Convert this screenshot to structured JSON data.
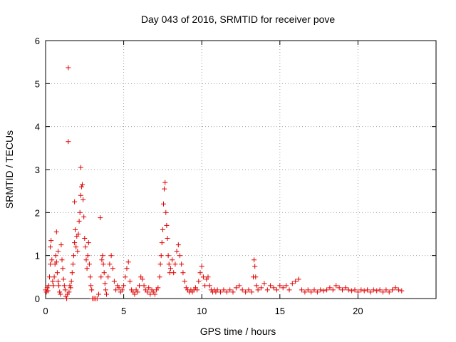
{
  "chart_data": {
    "type": "scatter",
    "title": "Day 043 of 2016, SRMTID for receiver pove",
    "xlabel": "GPS time / hours",
    "ylabel": "SRMTID / TECUs",
    "xlim": [
      0,
      25
    ],
    "ylim": [
      0,
      6
    ],
    "xticks": [
      0,
      5,
      10,
      15,
      20
    ],
    "yticks": [
      0,
      1,
      2,
      3,
      4,
      5,
      6
    ],
    "xtick_labels": [
      "0",
      "5",
      "10",
      "15",
      "20"
    ],
    "ytick_labels": [
      "0",
      "1",
      "2",
      "3",
      "4",
      "5",
      "6"
    ],
    "grid": true,
    "marker": "+",
    "color": "#e00000",
    "series": [
      {
        "name": "SRMTID",
        "points": [
          [
            0.0,
            0.2
          ],
          [
            0.05,
            0.15
          ],
          [
            0.1,
            0.25
          ],
          [
            0.15,
            0.18
          ],
          [
            0.2,
            0.3
          ],
          [
            0.25,
            0.5
          ],
          [
            0.3,
            0.8
          ],
          [
            0.3,
            1.2
          ],
          [
            0.35,
            1.35
          ],
          [
            0.4,
            0.9
          ],
          [
            0.45,
            0.4
          ],
          [
            0.5,
            0.3
          ],
          [
            0.55,
            0.5
          ],
          [
            0.6,
            0.8
          ],
          [
            0.65,
            1.0
          ],
          [
            0.7,
            0.85
          ],
          [
            0.75,
            0.6
          ],
          [
            0.8,
            0.4
          ],
          [
            0.85,
            0.3
          ],
          [
            0.9,
            0.15
          ],
          [
            0.95,
            0.1
          ],
          [
            0.7,
            1.55
          ],
          [
            0.8,
            1.1
          ],
          [
            1.0,
            1.25
          ],
          [
            1.05,
            0.9
          ],
          [
            1.1,
            0.7
          ],
          [
            1.15,
            0.45
          ],
          [
            1.2,
            0.3
          ],
          [
            1.25,
            0.2
          ],
          [
            1.3,
            0.05
          ],
          [
            1.35,
            0.0
          ],
          [
            1.4,
            0.1
          ],
          [
            1.45,
            5.37
          ],
          [
            1.45,
            3.65
          ],
          [
            1.5,
            0.15
          ],
          [
            1.55,
            0.3
          ],
          [
            1.6,
            0.25
          ],
          [
            1.65,
            0.4
          ],
          [
            1.7,
            0.6
          ],
          [
            1.75,
            0.8
          ],
          [
            1.8,
            1.0
          ],
          [
            1.85,
            1.3
          ],
          [
            1.9,
            1.6
          ],
          [
            1.85,
            2.25
          ],
          [
            1.95,
            1.2
          ],
          [
            2.0,
            1.45
          ],
          [
            2.05,
            1.1
          ],
          [
            2.1,
            1.5
          ],
          [
            2.15,
            1.8
          ],
          [
            2.2,
            2.0
          ],
          [
            2.25,
            2.4
          ],
          [
            2.25,
            3.05
          ],
          [
            2.3,
            2.6
          ],
          [
            2.35,
            2.65
          ],
          [
            2.4,
            2.3
          ],
          [
            2.45,
            1.9
          ],
          [
            2.5,
            1.4
          ],
          [
            2.55,
            1.2
          ],
          [
            2.6,
            0.9
          ],
          [
            2.65,
            0.7
          ],
          [
            2.7,
            1.0
          ],
          [
            2.75,
            1.3
          ],
          [
            2.8,
            0.8
          ],
          [
            2.85,
            0.5
          ],
          [
            2.9,
            0.3
          ],
          [
            2.95,
            0.2
          ],
          [
            3.0,
            0.0
          ],
          [
            3.1,
            0.0
          ],
          [
            3.2,
            0.0
          ],
          [
            3.3,
            0.0
          ],
          [
            3.4,
            0.1
          ],
          [
            3.5,
            1.88
          ],
          [
            3.55,
            0.5
          ],
          [
            3.6,
            0.9
          ],
          [
            3.65,
            1.0
          ],
          [
            3.7,
            0.8
          ],
          [
            3.75,
            0.6
          ],
          [
            3.8,
            0.35
          ],
          [
            3.85,
            0.2
          ],
          [
            3.9,
            0.1
          ],
          [
            4.0,
            0.5
          ],
          [
            4.1,
            0.8
          ],
          [
            4.2,
            1.0
          ],
          [
            4.3,
            0.7
          ],
          [
            4.4,
            0.4
          ],
          [
            4.5,
            0.2
          ],
          [
            4.6,
            0.3
          ],
          [
            4.7,
            0.25
          ],
          [
            4.8,
            0.15
          ],
          [
            4.9,
            0.2
          ],
          [
            5.0,
            0.3
          ],
          [
            5.1,
            0.5
          ],
          [
            5.2,
            0.7
          ],
          [
            5.3,
            0.85
          ],
          [
            5.4,
            0.4
          ],
          [
            5.5,
            0.2
          ],
          [
            5.6,
            0.15
          ],
          [
            5.7,
            0.1
          ],
          [
            5.8,
            0.2
          ],
          [
            5.9,
            0.15
          ],
          [
            6.0,
            0.3
          ],
          [
            6.1,
            0.5
          ],
          [
            6.2,
            0.45
          ],
          [
            6.3,
            0.3
          ],
          [
            6.4,
            0.2
          ],
          [
            6.5,
            0.15
          ],
          [
            6.6,
            0.25
          ],
          [
            6.7,
            0.1
          ],
          [
            6.8,
            0.2
          ],
          [
            6.9,
            0.15
          ],
          [
            7.0,
            0.1
          ],
          [
            7.1,
            0.2
          ],
          [
            7.2,
            0.25
          ],
          [
            7.3,
            0.5
          ],
          [
            7.35,
            0.8
          ],
          [
            7.4,
            1.0
          ],
          [
            7.45,
            1.3
          ],
          [
            7.5,
            1.6
          ],
          [
            7.55,
            2.2
          ],
          [
            7.6,
            2.55
          ],
          [
            7.65,
            2.7
          ],
          [
            7.7,
            2.0
          ],
          [
            7.75,
            1.7
          ],
          [
            7.8,
            1.4
          ],
          [
            7.85,
            1.0
          ],
          [
            7.9,
            0.8
          ],
          [
            7.95,
            0.6
          ],
          [
            8.0,
            0.7
          ],
          [
            8.1,
            0.9
          ],
          [
            8.2,
            0.6
          ],
          [
            8.3,
            0.8
          ],
          [
            8.4,
            1.1
          ],
          [
            8.5,
            1.25
          ],
          [
            8.6,
            1.0
          ],
          [
            8.7,
            0.8
          ],
          [
            8.8,
            0.6
          ],
          [
            8.9,
            0.4
          ],
          [
            9.0,
            0.25
          ],
          [
            9.1,
            0.2
          ],
          [
            9.2,
            0.15
          ],
          [
            9.3,
            0.2
          ],
          [
            9.4,
            0.15
          ],
          [
            9.5,
            0.2
          ],
          [
            9.6,
            0.25
          ],
          [
            9.7,
            0.2
          ],
          [
            9.8,
            0.4
          ],
          [
            9.9,
            0.6
          ],
          [
            10.0,
            0.75
          ],
          [
            10.1,
            0.5
          ],
          [
            10.2,
            0.3
          ],
          [
            10.3,
            0.45
          ],
          [
            10.4,
            0.5
          ],
          [
            10.5,
            0.3
          ],
          [
            10.6,
            0.2
          ],
          [
            10.7,
            0.15
          ],
          [
            10.8,
            0.2
          ],
          [
            10.9,
            0.15
          ],
          [
            11.0,
            0.2
          ],
          [
            11.2,
            0.15
          ],
          [
            11.4,
            0.2
          ],
          [
            11.6,
            0.15
          ],
          [
            11.8,
            0.2
          ],
          [
            12.0,
            0.15
          ],
          [
            12.2,
            0.25
          ],
          [
            12.4,
            0.3
          ],
          [
            12.6,
            0.2
          ],
          [
            12.8,
            0.15
          ],
          [
            13.0,
            0.2
          ],
          [
            13.2,
            0.15
          ],
          [
            13.3,
            0.5
          ],
          [
            13.35,
            0.9
          ],
          [
            13.4,
            0.75
          ],
          [
            13.45,
            0.5
          ],
          [
            13.5,
            0.3
          ],
          [
            13.6,
            0.2
          ],
          [
            13.8,
            0.25
          ],
          [
            14.0,
            0.35
          ],
          [
            14.2,
            0.2
          ],
          [
            14.4,
            0.3
          ],
          [
            14.6,
            0.25
          ],
          [
            14.8,
            0.2
          ],
          [
            15.0,
            0.3
          ],
          [
            15.2,
            0.25
          ],
          [
            15.4,
            0.3
          ],
          [
            15.6,
            0.2
          ],
          [
            15.8,
            0.35
          ],
          [
            16.0,
            0.4
          ],
          [
            16.2,
            0.45
          ],
          [
            16.4,
            0.2
          ],
          [
            16.6,
            0.15
          ],
          [
            16.8,
            0.2
          ],
          [
            17.0,
            0.15
          ],
          [
            17.2,
            0.2
          ],
          [
            17.4,
            0.15
          ],
          [
            17.6,
            0.2
          ],
          [
            17.8,
            0.18
          ],
          [
            18.0,
            0.2
          ],
          [
            18.2,
            0.25
          ],
          [
            18.4,
            0.2
          ],
          [
            18.6,
            0.3
          ],
          [
            18.8,
            0.25
          ],
          [
            19.0,
            0.2
          ],
          [
            19.2,
            0.25
          ],
          [
            19.4,
            0.2
          ],
          [
            19.6,
            0.18
          ],
          [
            19.8,
            0.2
          ],
          [
            20.0,
            0.15
          ],
          [
            20.2,
            0.2
          ],
          [
            20.4,
            0.18
          ],
          [
            20.6,
            0.2
          ],
          [
            20.8,
            0.15
          ],
          [
            21.0,
            0.2
          ],
          [
            21.2,
            0.18
          ],
          [
            21.4,
            0.2
          ],
          [
            21.6,
            0.15
          ],
          [
            21.8,
            0.2
          ],
          [
            22.0,
            0.15
          ],
          [
            22.2,
            0.2
          ],
          [
            22.4,
            0.25
          ],
          [
            22.6,
            0.2
          ],
          [
            22.8,
            0.18
          ]
        ]
      }
    ]
  }
}
